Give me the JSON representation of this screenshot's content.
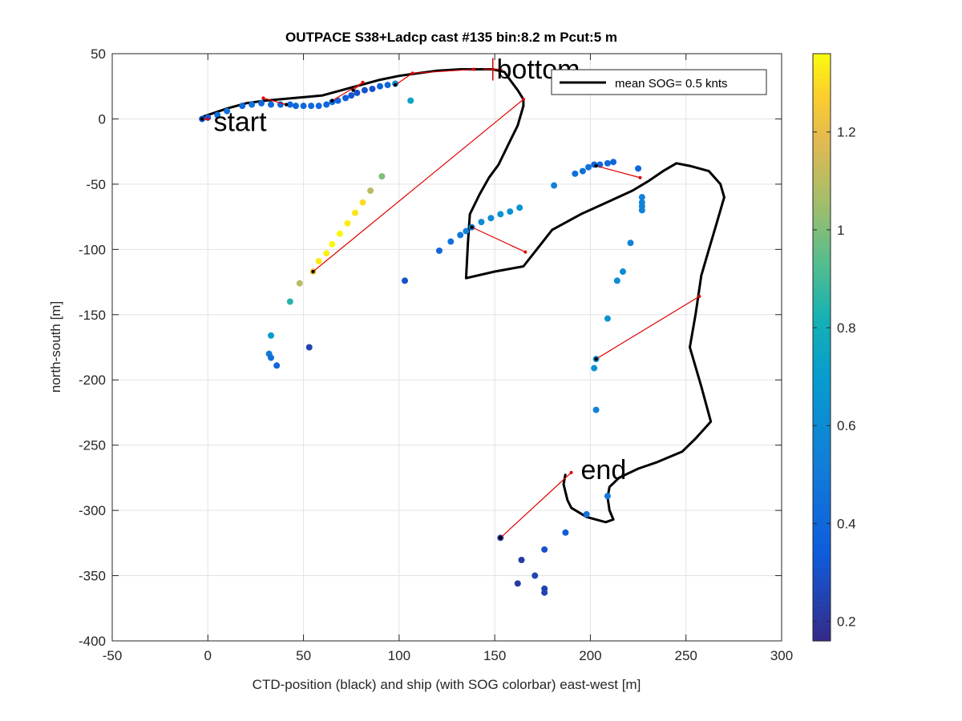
{
  "chart_data": {
    "type": "scatter",
    "title": "OUTPACE S38+Ladcp cast #135 bin:8.2 m  Pcut:5 m",
    "xlabel": "CTD-position (black) and ship (with SOG colorbar) east-west [m]",
    "ylabel": "north-south [m]",
    "xlim": [
      -50,
      300
    ],
    "ylim": [
      -400,
      50
    ],
    "xticks": [
      -50,
      0,
      50,
      100,
      150,
      200,
      250,
      300
    ],
    "yticks": [
      50,
      0,
      -50,
      -100,
      -150,
      -200,
      -250,
      -300,
      -350,
      -400
    ],
    "grid": true,
    "legend": {
      "position": "top-right",
      "entries": [
        "mean SOG=  0.5 knts"
      ]
    },
    "colorbar": {
      "label": "",
      "range": [
        0.16,
        1.36
      ],
      "ticks": [
        "0.2",
        "0.4",
        "0.6",
        "0.8",
        "1",
        "1.2"
      ],
      "tick_values": [
        0.2,
        0.4,
        0.6,
        0.8,
        1.0,
        1.2
      ]
    },
    "annotations": [
      {
        "text": "start",
        "x": 3,
        "y": -3
      },
      {
        "text": "bottom",
        "x": 151,
        "y": 37
      },
      {
        "text": "end",
        "x": 195,
        "y": -270
      }
    ],
    "bottom_marker": {
      "x": 149,
      "y": 38
    },
    "ctd_track": [
      [
        -4,
        0
      ],
      [
        -2,
        2
      ],
      [
        2,
        4
      ],
      [
        10,
        8
      ],
      [
        20,
        12
      ],
      [
        30,
        14
      ],
      [
        45,
        16
      ],
      [
        60,
        18
      ],
      [
        70,
        22
      ],
      [
        80,
        26
      ],
      [
        90,
        30
      ],
      [
        100,
        33
      ],
      [
        110,
        35
      ],
      [
        120,
        37
      ],
      [
        132,
        38
      ],
      [
        140,
        38
      ],
      [
        149,
        38
      ],
      [
        155,
        36
      ],
      [
        158,
        30
      ],
      [
        162,
        22
      ],
      [
        165,
        15
      ],
      [
        165,
        10
      ],
      [
        162,
        -5
      ],
      [
        157,
        -20
      ],
      [
        152,
        -35
      ],
      [
        147,
        -45
      ],
      [
        142,
        -58
      ],
      [
        137,
        -73
      ],
      [
        136,
        -95
      ],
      [
        135,
        -122
      ],
      [
        150,
        -117
      ],
      [
        165,
        -113
      ],
      [
        172,
        -100
      ],
      [
        180,
        -85
      ],
      [
        195,
        -73
      ],
      [
        210,
        -63
      ],
      [
        222,
        -55
      ],
      [
        230,
        -48
      ],
      [
        238,
        -40
      ],
      [
        245,
        -34
      ],
      [
        252,
        -36
      ],
      [
        262,
        -40
      ],
      [
        268,
        -50
      ],
      [
        270,
        -60
      ],
      [
        266,
        -80
      ],
      [
        262,
        -100
      ],
      [
        258,
        -120
      ],
      [
        255,
        -150
      ],
      [
        252,
        -175
      ],
      [
        258,
        -205
      ],
      [
        263,
        -232
      ],
      [
        255,
        -245
      ],
      [
        248,
        -255
      ],
      [
        235,
        -263
      ],
      [
        225,
        -268
      ],
      [
        215,
        -275
      ],
      [
        210,
        -282
      ],
      [
        209,
        -290
      ],
      [
        210,
        -300
      ],
      [
        212,
        -307
      ],
      [
        208,
        -309
      ],
      [
        198,
        -305
      ],
      [
        190,
        -298
      ],
      [
        188,
        -292
      ],
      [
        186,
        -280
      ],
      [
        187,
        -272
      ]
    ],
    "ship_points": [
      [
        -3,
        0,
        0.3
      ],
      [
        0,
        1,
        0.35
      ],
      [
        5,
        3,
        0.45
      ],
      [
        10,
        6,
        0.45
      ],
      [
        18,
        10,
        0.4
      ],
      [
        23,
        11,
        0.45
      ],
      [
        28,
        12,
        0.4
      ],
      [
        33,
        11,
        0.4
      ],
      [
        38,
        11,
        0.4
      ],
      [
        43,
        11,
        0.4
      ],
      [
        46,
        10,
        0.4
      ],
      [
        50,
        10,
        0.4
      ],
      [
        54,
        10,
        0.4
      ],
      [
        58,
        10,
        0.4
      ],
      [
        62,
        11,
        0.4
      ],
      [
        65,
        13,
        0.4
      ],
      [
        68,
        14,
        0.38
      ],
      [
        72,
        16,
        0.35
      ],
      [
        75,
        18,
        0.32
      ],
      [
        78,
        20,
        0.3
      ],
      [
        82,
        22,
        0.3
      ],
      [
        86,
        23,
        0.3
      ],
      [
        90,
        25,
        0.35
      ],
      [
        94,
        26,
        0.4
      ],
      [
        98,
        27,
        0.6
      ],
      [
        106,
        14,
        0.75
      ],
      [
        91,
        -44,
        1.0
      ],
      [
        85,
        -55,
        1.1
      ],
      [
        81,
        -64,
        1.3
      ],
      [
        77,
        -72,
        1.32
      ],
      [
        73,
        -80,
        1.33
      ],
      [
        69,
        -88,
        1.35
      ],
      [
        65,
        -96,
        1.35
      ],
      [
        62,
        -103,
        1.34
      ],
      [
        58,
        -109,
        1.33
      ],
      [
        55,
        -117,
        1.25
      ],
      [
        48,
        -126,
        1.1
      ],
      [
        43,
        -140,
        0.85
      ],
      [
        33,
        -166,
        0.7
      ],
      [
        32,
        -180,
        0.5
      ],
      [
        33,
        -183,
        0.45
      ],
      [
        36,
        -189,
        0.4
      ],
      [
        53,
        -175,
        0.25
      ],
      [
        103,
        -124,
        0.3
      ],
      [
        121,
        -101,
        0.4
      ],
      [
        127,
        -94,
        0.45
      ],
      [
        132,
        -89,
        0.5
      ],
      [
        135,
        -86,
        0.55
      ],
      [
        138,
        -83,
        0.55
      ],
      [
        143,
        -79,
        0.6
      ],
      [
        148,
        -76,
        0.6
      ],
      [
        153,
        -73,
        0.65
      ],
      [
        158,
        -71,
        0.65
      ],
      [
        163,
        -68,
        0.65
      ],
      [
        181,
        -51,
        0.55
      ],
      [
        192,
        -42,
        0.45
      ],
      [
        196,
        -40,
        0.45
      ],
      [
        199,
        -37,
        0.45
      ],
      [
        202,
        -35,
        0.4
      ],
      [
        205,
        -35,
        0.4
      ],
      [
        209,
        -34,
        0.4
      ],
      [
        212,
        -33,
        0.4
      ],
      [
        225,
        -38,
        0.4
      ],
      [
        227,
        -60,
        0.55
      ],
      [
        227,
        -64,
        0.55
      ],
      [
        227,
        -67,
        0.55
      ],
      [
        227,
        -70,
        0.55
      ],
      [
        221,
        -95,
        0.55
      ],
      [
        217,
        -117,
        0.6
      ],
      [
        214,
        -124,
        0.6
      ],
      [
        209,
        -153,
        0.65
      ],
      [
        203,
        -184,
        0.65
      ],
      [
        202,
        -191,
        0.65
      ],
      [
        203,
        -223,
        0.55
      ],
      [
        209,
        -289,
        0.5
      ],
      [
        198,
        -303,
        0.45
      ],
      [
        187,
        -317,
        0.35
      ],
      [
        176,
        -330,
        0.3
      ],
      [
        171,
        -350,
        0.25
      ],
      [
        176,
        -360,
        0.25
      ],
      [
        176,
        -363,
        0.25
      ],
      [
        162,
        -356,
        0.22
      ],
      [
        164,
        -338,
        0.22
      ],
      [
        153,
        -321,
        0.2
      ]
    ],
    "ctd_dots": [
      [
        -3,
        0
      ],
      [
        41,
        11
      ],
      [
        65,
        14
      ],
      [
        76,
        22
      ],
      [
        98,
        26
      ],
      [
        55,
        -117
      ],
      [
        138,
        -83
      ],
      [
        203,
        -36
      ],
      [
        203,
        -184
      ],
      [
        153,
        -321
      ]
    ],
    "red_links": [
      [
        [
          -3,
          0
        ],
        [
          0,
          0
        ]
      ],
      [
        [
          41,
          11
        ],
        [
          29,
          16
        ]
      ],
      [
        [
          65,
          14
        ],
        [
          81,
          28
        ]
      ],
      [
        [
          76,
          22
        ],
        [
          81,
          28
        ]
      ],
      [
        [
          98,
          26
        ],
        [
          107,
          35
        ]
      ],
      [
        [
          107,
          35
        ],
        [
          139,
          38
        ]
      ],
      [
        [
          55,
          -117
        ],
        [
          165,
          15
        ]
      ],
      [
        [
          138,
          -83
        ],
        [
          166,
          -102
        ]
      ],
      [
        [
          203,
          -36
        ],
        [
          226,
          -45
        ]
      ],
      [
        [
          203,
          -184
        ],
        [
          257,
          -136
        ]
      ],
      [
        [
          153,
          -321
        ],
        [
          190,
          -271
        ]
      ]
    ]
  }
}
